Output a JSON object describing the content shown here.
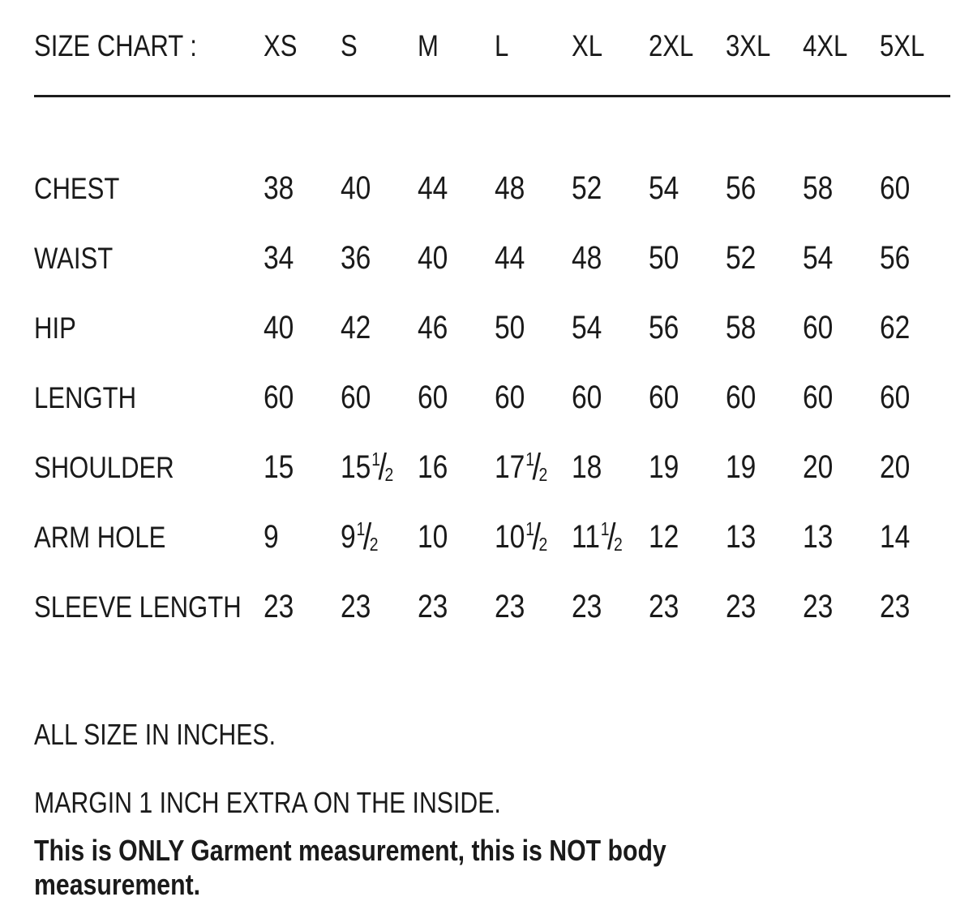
{
  "page": {
    "background": "#ffffff",
    "text_color": "#1a1a1a",
    "rule_color": "#1c1c1c"
  },
  "table": {
    "title": "SIZE CHART :",
    "columns": [
      "XS",
      "S",
      "M",
      "L",
      "XL",
      "2XL",
      "3XL",
      "4XL",
      "5XL"
    ],
    "rows": [
      {
        "label": "CHEST",
        "values": [
          "38",
          "40",
          "44",
          "48",
          "52",
          "54",
          "56",
          "58",
          "60"
        ]
      },
      {
        "label": "WAIST",
        "values": [
          "34",
          "36",
          "40",
          "44",
          "48",
          "50",
          "52",
          "54",
          "56"
        ]
      },
      {
        "label": "HIP",
        "values": [
          "40",
          "42",
          "46",
          "50",
          "54",
          "56",
          "58",
          "60",
          "62"
        ]
      },
      {
        "label": "LENGTH",
        "values": [
          "60",
          "60",
          "60",
          "60",
          "60",
          "60",
          "60",
          "60",
          "60"
        ]
      },
      {
        "label": "SHOULDER",
        "values": [
          "15",
          "15 1/2",
          "16",
          "17 1/2",
          "18",
          "19",
          "19",
          "20",
          "20"
        ]
      },
      {
        "label": "ARM HOLE",
        "values": [
          "9",
          "9 1/2",
          "10",
          "10 1/2",
          "11 1/2",
          "12",
          "13",
          "13",
          "14"
        ]
      },
      {
        "label": "SLEEVE LENGTH",
        "values": [
          "23",
          "23",
          "23",
          "23",
          "23",
          "23",
          "23",
          "23",
          "23"
        ]
      }
    ]
  },
  "notes": {
    "units": "ALL SIZE IN INCHES.",
    "margin": "MARGIN 1 INCH EXTRA ON THE INSIDE.",
    "disclaimer": "This is ONLY Garment measurement, this is NOT body measurement."
  }
}
